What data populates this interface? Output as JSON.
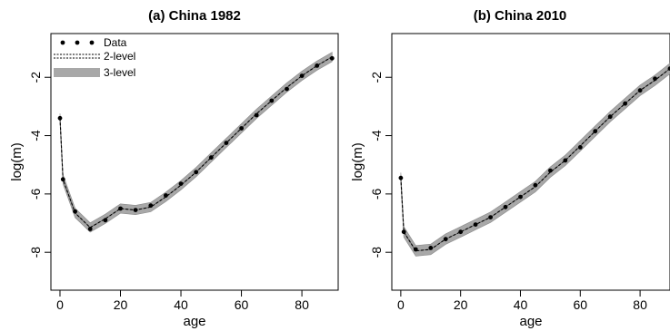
{
  "chart_data": [
    {
      "type": "line",
      "title": "(a) China 1982",
      "xlabel": "age",
      "ylabel": "log(m)",
      "xlim": [
        -3,
        92
      ],
      "ylim": [
        -9.3,
        -0.5
      ],
      "xticks": [
        0,
        20,
        40,
        60,
        80
      ],
      "yticks": [
        -2,
        -4,
        -6,
        -8
      ],
      "legend": {
        "placement": "top-left",
        "entries": [
          "Data",
          "2-level",
          "3-level"
        ]
      },
      "series": [
        {
          "name": "Data",
          "x": [
            0,
            1,
            5,
            10,
            15,
            20,
            25,
            30,
            35,
            40,
            45,
            50,
            55,
            60,
            65,
            70,
            75,
            80,
            85,
            90
          ],
          "y": [
            -3.4,
            -5.5,
            -6.6,
            -7.2,
            -6.9,
            -6.5,
            -6.55,
            -6.4,
            -6.05,
            -5.65,
            -5.25,
            -4.75,
            -4.25,
            -3.75,
            -3.3,
            -2.8,
            -2.4,
            -1.95,
            -1.6,
            -1.35
          ]
        },
        {
          "name": "2-level",
          "x": [
            0,
            1,
            5,
            10,
            15,
            20,
            25,
            30,
            35,
            40,
            45,
            50,
            55,
            60,
            65,
            70,
            75,
            80,
            85,
            90
          ],
          "y": [
            -3.4,
            -5.5,
            -6.65,
            -7.15,
            -6.85,
            -6.5,
            -6.55,
            -6.45,
            -6.1,
            -5.7,
            -5.25,
            -4.75,
            -4.25,
            -3.75,
            -3.25,
            -2.8,
            -2.35,
            -1.95,
            -1.6,
            -1.3
          ]
        },
        {
          "name": "3-level",
          "x": [
            0,
            1,
            5,
            10,
            15,
            20,
            25,
            30,
            35,
            40,
            45,
            50,
            55,
            60,
            65,
            70,
            75,
            80,
            85,
            90
          ],
          "y": [
            -3.4,
            -5.5,
            -6.65,
            -7.15,
            -6.85,
            -6.5,
            -6.55,
            -6.45,
            -6.1,
            -5.7,
            -5.25,
            -4.75,
            -4.25,
            -3.75,
            -3.25,
            -2.8,
            -2.35,
            -1.95,
            -1.6,
            -1.3
          ],
          "band_halfwidth": 0.16
        }
      ]
    },
    {
      "type": "line",
      "title": "(b) China 2010",
      "xlabel": "age",
      "ylabel": "log(m)",
      "xlim": [
        -3,
        90
      ],
      "ylim": [
        -9.3,
        -0.5
      ],
      "xticks": [
        0,
        20,
        40,
        60,
        80
      ],
      "yticks": [
        -2,
        -4,
        -6,
        -8
      ],
      "series": [
        {
          "name": "Data",
          "x": [
            0,
            1,
            5,
            10,
            15,
            20,
            25,
            30,
            35,
            40,
            45,
            50,
            55,
            60,
            65,
            70,
            75,
            80,
            85,
            90
          ],
          "y": [
            -5.45,
            -7.3,
            -7.9,
            -7.85,
            -7.55,
            -7.3,
            -7.05,
            -6.8,
            -6.45,
            -6.1,
            -5.7,
            -5.2,
            -4.85,
            -4.4,
            -3.85,
            -3.35,
            -2.9,
            -2.45,
            -2.05,
            -1.7
          ]
        },
        {
          "name": "2-level",
          "x": [
            0,
            1,
            5,
            10,
            15,
            20,
            25,
            30,
            35,
            40,
            45,
            50,
            55,
            60,
            65,
            70,
            75,
            80,
            85,
            90
          ],
          "y": [
            -5.45,
            -7.3,
            -7.95,
            -7.9,
            -7.55,
            -7.3,
            -7.05,
            -6.8,
            -6.45,
            -6.1,
            -5.75,
            -5.25,
            -4.85,
            -4.35,
            -3.85,
            -3.35,
            -2.9,
            -2.45,
            -2.1,
            -1.7
          ]
        },
        {
          "name": "3-level",
          "x": [
            0,
            1,
            5,
            10,
            15,
            20,
            25,
            30,
            35,
            40,
            45,
            50,
            55,
            60,
            65,
            70,
            75,
            80,
            85,
            90
          ],
          "y": [
            -5.45,
            -7.3,
            -7.95,
            -7.9,
            -7.55,
            -7.3,
            -7.05,
            -6.8,
            -6.45,
            -6.1,
            -5.75,
            -5.25,
            -4.85,
            -4.35,
            -3.85,
            -3.35,
            -2.9,
            -2.45,
            -2.1,
            -1.7
          ],
          "band_halfwidth": 0.18
        }
      ]
    }
  ]
}
